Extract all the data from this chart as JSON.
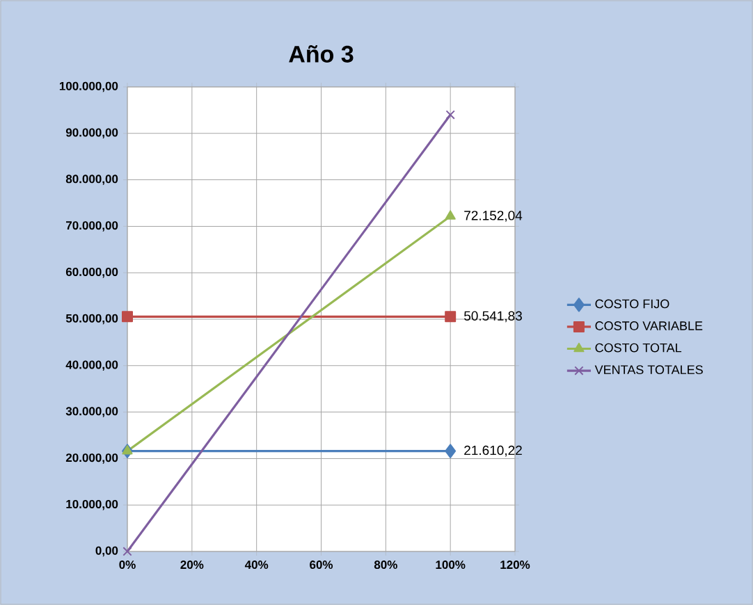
{
  "chart_data": {
    "type": "line",
    "title": "Año 3",
    "x": [
      0,
      100
    ],
    "xlim": [
      0,
      120
    ],
    "xticks": [
      {
        "value": 0,
        "label": "0%"
      },
      {
        "value": 20,
        "label": "20%"
      },
      {
        "value": 40,
        "label": "40%"
      },
      {
        "value": 60,
        "label": "60%"
      },
      {
        "value": 80,
        "label": "80%"
      },
      {
        "value": 100,
        "label": "100%"
      },
      {
        "value": 120,
        "label": "120%"
      }
    ],
    "ylim": [
      0,
      100000
    ],
    "yticks": [
      {
        "value": 0,
        "label": "0,00"
      },
      {
        "value": 10000,
        "label": "10.000,00"
      },
      {
        "value": 20000,
        "label": "20.000,00"
      },
      {
        "value": 30000,
        "label": "30.000,00"
      },
      {
        "value": 40000,
        "label": "40.000,00"
      },
      {
        "value": 50000,
        "label": "50.000,00"
      },
      {
        "value": 60000,
        "label": "60.000,00"
      },
      {
        "value": 70000,
        "label": "70.000,00"
      },
      {
        "value": 80000,
        "label": "80.000,00"
      },
      {
        "value": 90000,
        "label": "90.000,00"
      },
      {
        "value": 100000,
        "label": "100.000,00"
      }
    ],
    "series": [
      {
        "name": "COSTO FIJO",
        "color": "#4a7ebb",
        "marker": "diamond",
        "values": [
          21610.22,
          21610.22
        ],
        "value_labels": [
          null,
          "21.610,22"
        ]
      },
      {
        "name": "COSTO VARIABLE",
        "color": "#be4b48",
        "marker": "square",
        "values": [
          50541.83,
          50541.83
        ],
        "value_labels": [
          null,
          "50.541,83"
        ]
      },
      {
        "name": "COSTO TOTAL",
        "color": "#98b954",
        "marker": "triangle",
        "values": [
          21610.22,
          72152.04
        ],
        "value_labels": [
          null,
          "72.152,04"
        ]
      },
      {
        "name": "VENTAS TOTALES",
        "color": "#7e5ea0",
        "marker": "cross",
        "values": [
          0,
          94000
        ],
        "value_labels": [
          null,
          null
        ]
      }
    ],
    "grid": true,
    "legend": "right"
  }
}
